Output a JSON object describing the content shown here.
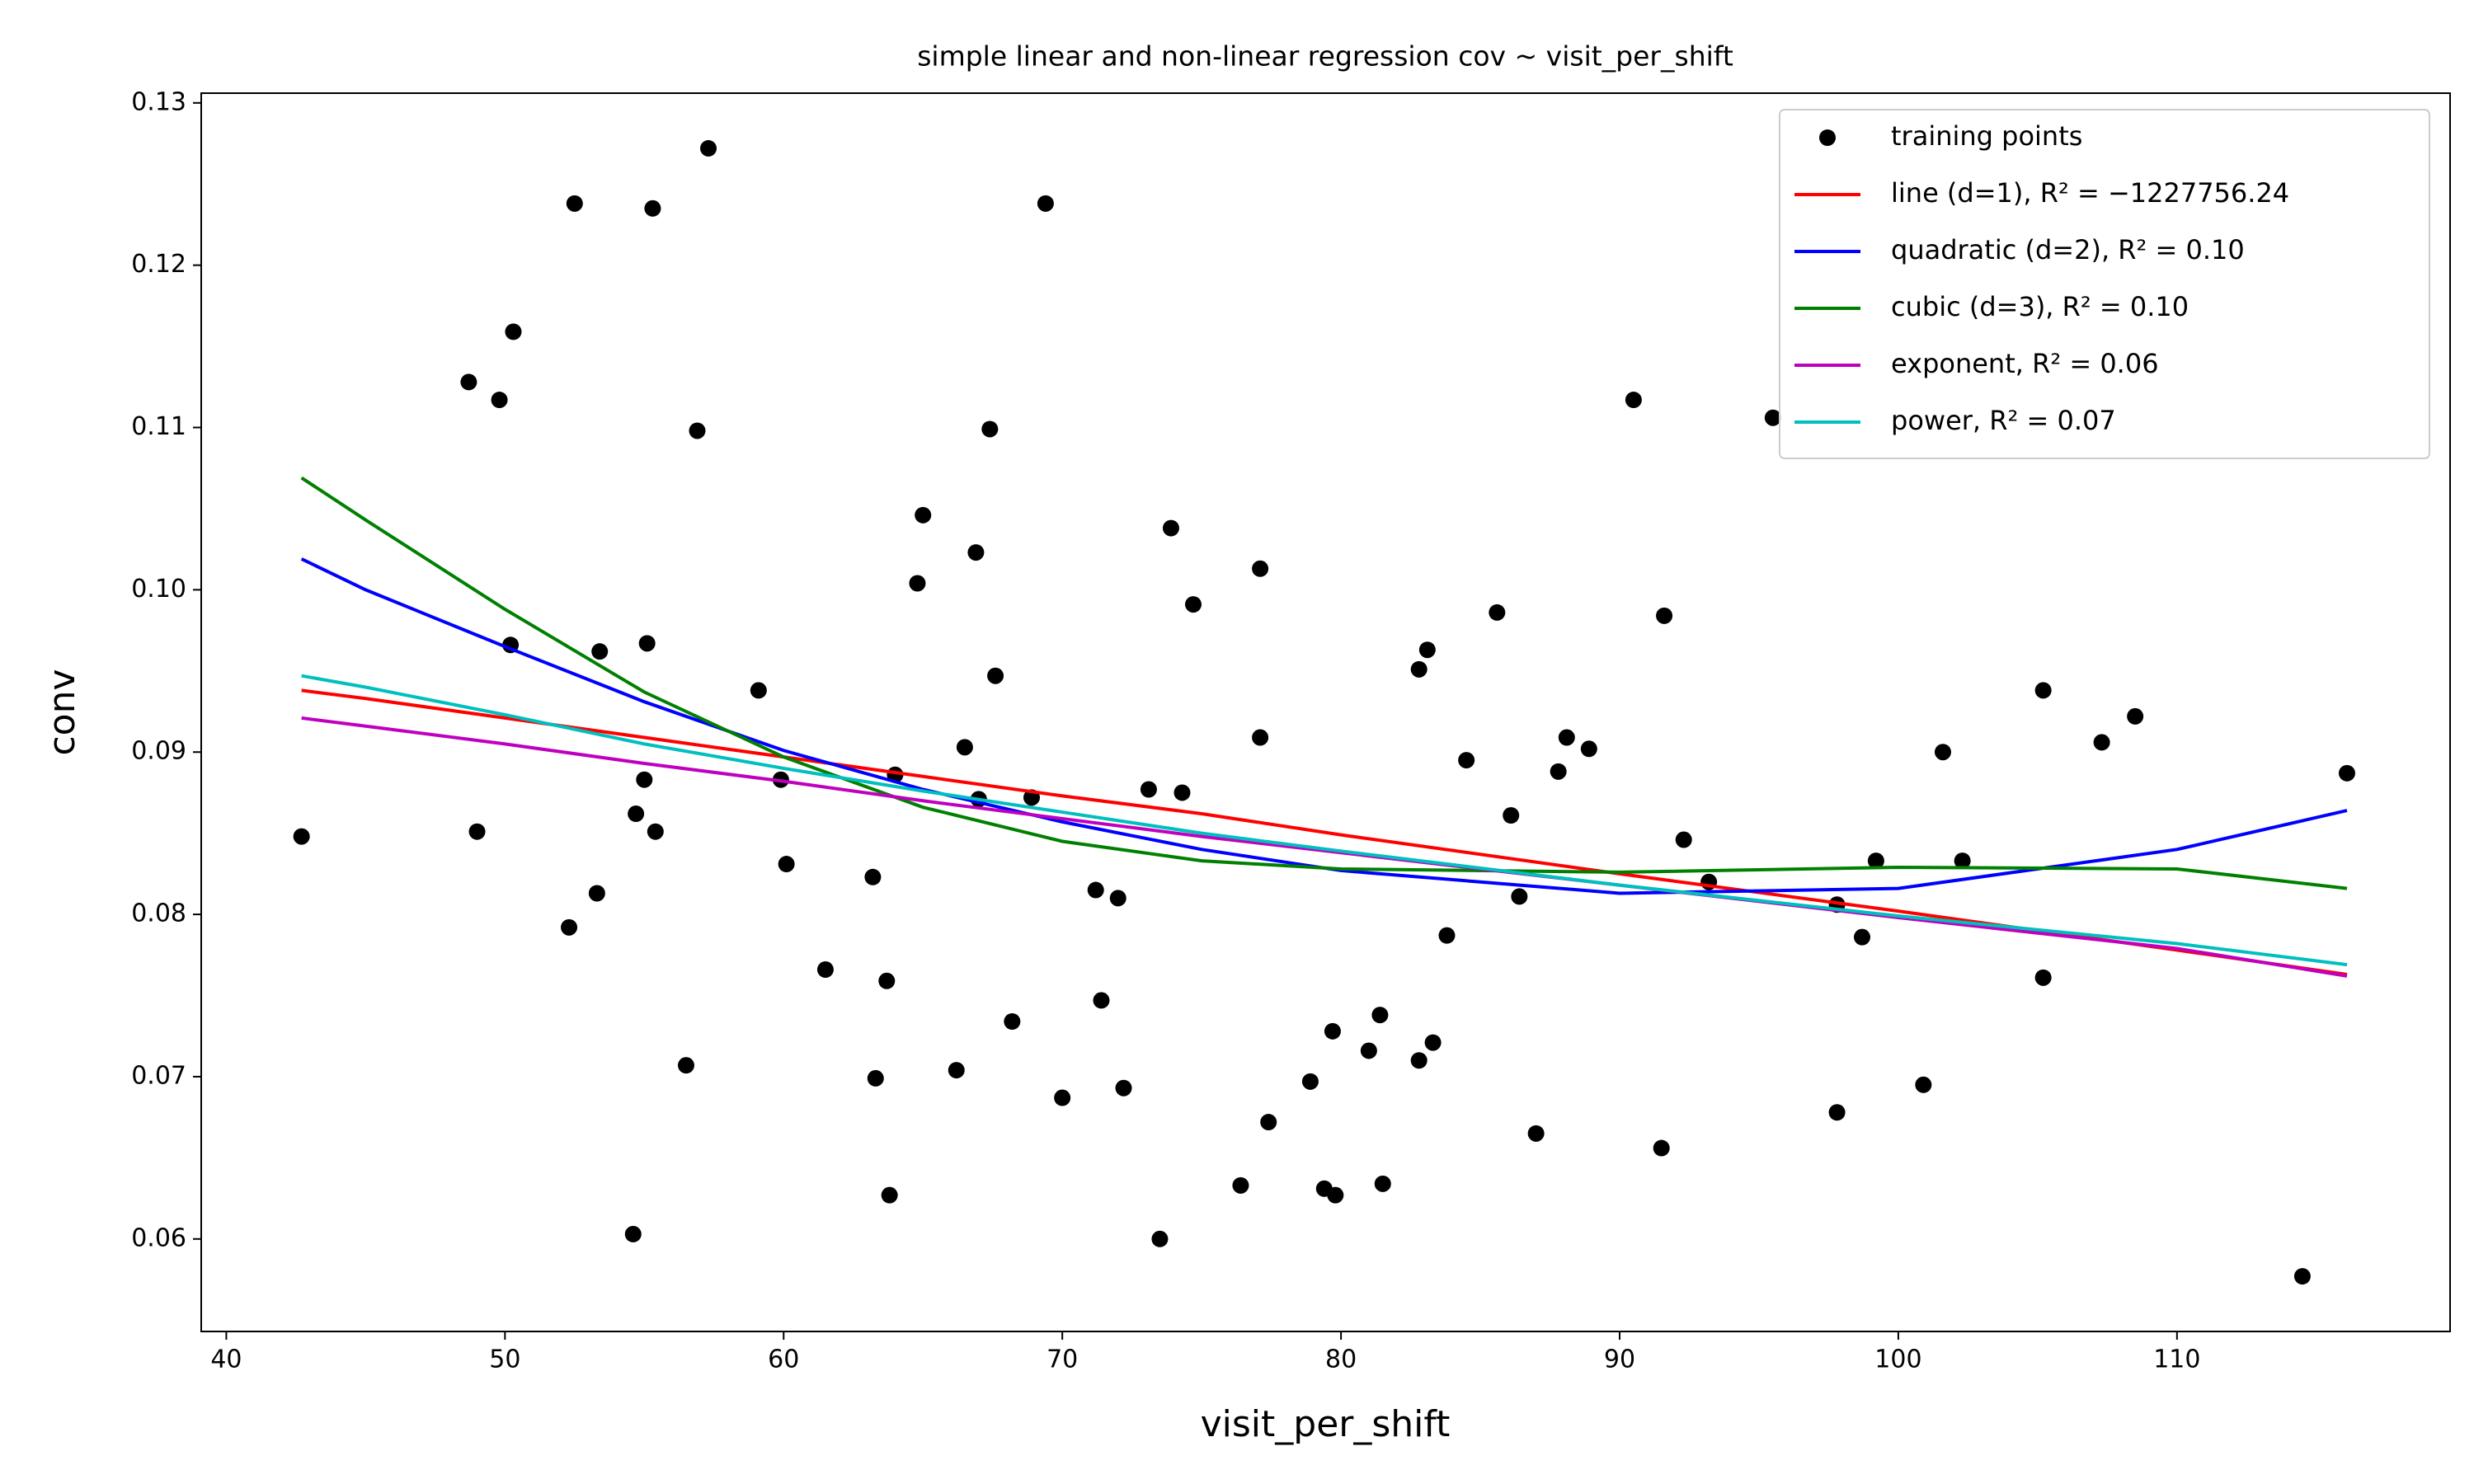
{
  "chart_data": {
    "type": "scatter",
    "title": "simple linear and non-linear regression cov ~ visit_per_shift",
    "x_label": "visit_per_shift",
    "y_label": "conv",
    "xlim": [
      39.1,
      119.8
    ],
    "ylim": [
      0.0543,
      0.1306
    ],
    "xticks": [
      40,
      50,
      60,
      70,
      80,
      90,
      100,
      110
    ],
    "yticks": [
      0.06,
      0.07,
      0.08,
      0.09,
      {
        "value": 0.1,
        "label": "0.10"
      },
      0.11,
      0.12,
      0.13
    ],
    "grid": false,
    "legend": "upper right",
    "series": [
      {
        "name": "training points",
        "mode": "markers",
        "color": "#000000",
        "x": [
          42.7,
          48.7,
          49.0,
          49.8,
          50.2,
          50.3,
          52.3,
          52.5,
          53.3,
          53.4,
          54.6,
          54.7,
          55.0,
          55.1,
          55.3,
          55.4,
          56.5,
          56.9,
          57.3,
          59.1,
          59.9,
          60.1,
          61.5,
          63.2,
          63.3,
          63.7,
          63.8,
          64.0,
          64.8,
          65.0,
          66.2,
          66.5,
          66.9,
          67.0,
          67.4,
          67.6,
          68.2,
          68.9,
          69.4,
          70.0,
          71.2,
          71.4,
          72.0,
          72.2,
          73.1,
          73.5,
          73.9,
          74.3,
          74.7,
          76.4,
          77.1,
          77.1,
          77.4,
          78.9,
          79.4,
          79.7,
          79.8,
          81.0,
          81.4,
          81.5,
          82.8,
          82.8,
          83.1,
          83.3,
          83.8,
          84.5,
          85.6,
          86.1,
          86.4,
          87.0,
          87.8,
          88.1,
          88.9,
          90.5,
          91.5,
          91.6,
          92.3,
          93.2,
          95.5,
          97.8,
          97.8,
          98.7,
          99.2,
          100.9,
          101.6,
          102.3,
          105.2,
          105.2,
          107.3,
          108.5,
          114.5,
          116.1
        ],
        "values": [
          0.0848,
          0.1128,
          0.0851,
          0.1117,
          0.0966,
          0.1159,
          0.0792,
          0.1238,
          0.0813,
          0.0962,
          0.0603,
          0.0862,
          0.0883,
          0.0967,
          0.1235,
          0.0851,
          0.0707,
          0.1098,
          0.1272,
          0.0938,
          0.0883,
          0.0831,
          0.0766,
          0.0823,
          0.0699,
          0.0759,
          0.0627,
          0.0886,
          0.1004,
          0.1046,
          0.0704,
          0.0903,
          0.1023,
          0.0871,
          0.1099,
          0.0947,
          0.0734,
          0.0872,
          0.1238,
          0.0687,
          0.0815,
          0.0747,
          0.081,
          0.0693,
          0.0877,
          0.06,
          0.1038,
          0.0875,
          0.0991,
          0.0633,
          0.1013,
          0.0909,
          0.0672,
          0.0697,
          0.0631,
          0.0728,
          0.0627,
          0.0716,
          0.0738,
          0.0634,
          0.071,
          0.0951,
          0.0963,
          0.0721,
          0.0787,
          0.0895,
          0.0986,
          0.0861,
          0.0811,
          0.0665,
          0.0888,
          0.0909,
          0.0902,
          0.1117,
          0.0656,
          0.0984,
          0.0846,
          0.082,
          0.1106,
          0.0806,
          0.0678,
          0.0786,
          0.0833,
          0.0695,
          0.09,
          0.0833,
          0.0938,
          0.0761,
          0.0906,
          0.0922,
          0.0577,
          0.0887
        ]
      },
      {
        "name": "line (d=1), R² = −1227756.24",
        "mode": "lines",
        "color": "#ff0000",
        "x": [
          42.7,
          45,
          50,
          55,
          60,
          65,
          70,
          75,
          80,
          90,
          100,
          110,
          116.1
        ],
        "values": [
          0.0938,
          0.0933,
          0.0921,
          0.0909,
          0.0897,
          0.0885,
          0.0873,
          0.0862,
          0.0849,
          0.0825,
          0.0802,
          0.0778,
          0.0763
        ]
      },
      {
        "name": "quadratic (d=2), R² = 0.10",
        "mode": "lines",
        "color": "#0000ff",
        "x": [
          42.7,
          45,
          50,
          55,
          60,
          65,
          70,
          75,
          80,
          90,
          100,
          110,
          116.1
        ],
        "values": [
          0.1019,
          0.1,
          0.0965,
          0.0931,
          0.0901,
          0.0877,
          0.0857,
          0.084,
          0.0827,
          0.0813,
          0.0816,
          0.084,
          0.0864
        ]
      },
      {
        "name": "cubic (d=3), R² = 0.10",
        "mode": "lines",
        "color": "#008000",
        "x": [
          42.7,
          45,
          50,
          55,
          60,
          65,
          70,
          75,
          80,
          90,
          100,
          110,
          116.1
        ],
        "values": [
          0.1069,
          0.1043,
          0.0988,
          0.0937,
          0.0897,
          0.0866,
          0.0845,
          0.0833,
          0.0828,
          0.0826,
          0.0829,
          0.0828,
          0.0816
        ]
      },
      {
        "name": "exponent, R² = 0.06",
        "mode": "lines",
        "color": "#bf00bf",
        "x": [
          42.7,
          45,
          50,
          55,
          60,
          65,
          70,
          75,
          80,
          90,
          100,
          110,
          116.1
        ],
        "values": [
          0.0921,
          0.0916,
          0.0905,
          0.0893,
          0.0882,
          0.087,
          0.0859,
          0.0848,
          0.0838,
          0.0818,
          0.0798,
          0.0779,
          0.0762
        ]
      },
      {
        "name": "power, R² = 0.07",
        "mode": "lines",
        "color": "#00bfbf",
        "x": [
          42.7,
          45,
          50,
          55,
          60,
          65,
          70,
          75,
          80,
          90,
          100,
          110,
          116.1
        ],
        "values": [
          0.0947,
          0.094,
          0.0923,
          0.0905,
          0.089,
          0.0876,
          0.0863,
          0.085,
          0.0839,
          0.0818,
          0.0799,
          0.0782,
          0.0769
        ]
      }
    ]
  }
}
